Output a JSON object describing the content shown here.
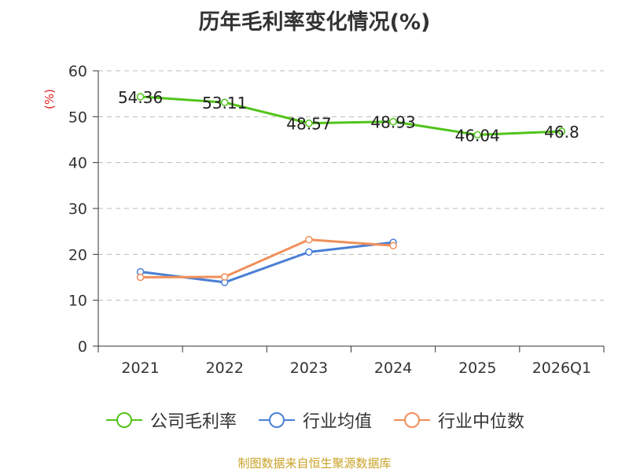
{
  "chart_data": {
    "type": "line",
    "title": "历年毛利率变化情况(%)",
    "ylabel": "(%)",
    "xlabel": "",
    "categories": [
      "2021",
      "2022",
      "2023",
      "2024",
      "2025",
      "2026Q1"
    ],
    "ylim": [
      0,
      60
    ],
    "yticks": [
      0,
      10,
      20,
      30,
      40,
      50,
      60
    ],
    "grid": true,
    "legend_position": "bottom",
    "series": [
      {
        "name": "公司毛利率",
        "color": "#52c41a",
        "values": [
          54.36,
          53.11,
          48.57,
          48.93,
          46.04,
          46.8
        ],
        "labels": [
          "54.36",
          "53.11",
          "48.57",
          "48.93",
          "46.04",
          "46.8"
        ]
      },
      {
        "name": "行业均值",
        "color": "#4a7fd6",
        "values": [
          16.2,
          13.9,
          20.5,
          22.6,
          null,
          null
        ]
      },
      {
        "name": "行业中位数",
        "color": "#f0905a",
        "values": [
          15.0,
          15.1,
          23.2,
          21.9,
          null,
          null
        ]
      }
    ]
  },
  "footer": "制图数据来自恒生聚源数据库"
}
